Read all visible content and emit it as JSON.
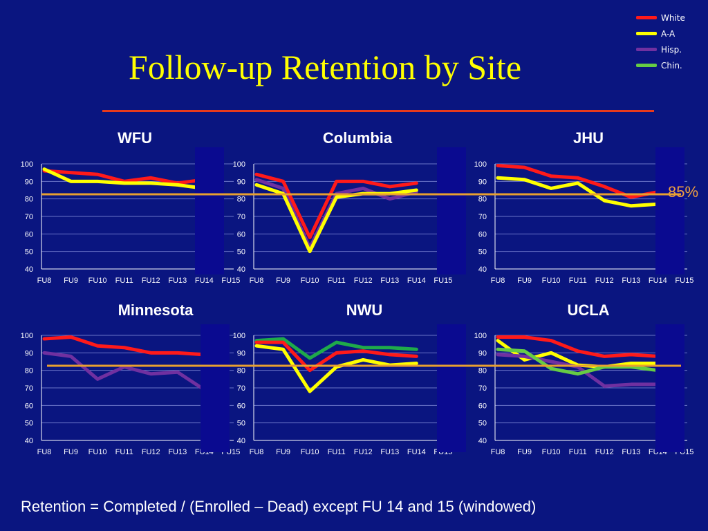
{
  "slide": {
    "title": "Follow-up Retention by Site",
    "threshold_label": "85%",
    "footnote": "Retention = Completed / (Enrolled – Dead) except FU 14 and 15 (windowed)"
  },
  "legend": [
    {
      "label": "White",
      "color": "#ff1a1a"
    },
    {
      "label": "A-A",
      "color": "#ffff00"
    },
    {
      "label": "Hisp.",
      "color": "#7030a0"
    },
    {
      "label": "Chin.",
      "color": "#66cc44"
    }
  ],
  "colors": {
    "background": "#0a1580",
    "white_series": "#ff1a1a",
    "aa_series": "#ffff00",
    "hisp_series": "#7030a0",
    "chin_series": "#66cc44",
    "nwu_chin_series": "#1faa4a",
    "threshold_line": "#e8a030",
    "mask": "#0a0a90"
  },
  "chart_data": [
    {
      "type": "line",
      "title": "WFU",
      "categories": [
        "FU8",
        "FU9",
        "FU10",
        "FU11",
        "FU12",
        "FU13",
        "FU14",
        "FU15"
      ],
      "ylim": [
        40,
        100
      ],
      "yticks": [
        40,
        50,
        60,
        70,
        80,
        90,
        100
      ],
      "series": [
        {
          "name": "White",
          "values": [
            96,
            95,
            94,
            90,
            92,
            89,
            91,
            null
          ]
        },
        {
          "name": "A-A",
          "values": [
            97,
            90,
            90,
            89,
            89,
            88,
            86,
            null
          ]
        }
      ]
    },
    {
      "type": "line",
      "title": "Columbia",
      "categories": [
        "FU8",
        "FU9",
        "FU10",
        "FU11",
        "FU12",
        "FU13",
        "FU14",
        "FU15"
      ],
      "ylim": [
        40,
        100
      ],
      "yticks": [
        40,
        50,
        60,
        70,
        80,
        90,
        100
      ],
      "series": [
        {
          "name": "White",
          "values": [
            94,
            90,
            58,
            90,
            90,
            87,
            89,
            null
          ]
        },
        {
          "name": "Hisp.",
          "values": [
            91,
            86,
            52,
            83,
            86,
            80,
            84,
            null
          ]
        },
        {
          "name": "A-A",
          "values": [
            88,
            83,
            50,
            81,
            83,
            83,
            85,
            null
          ]
        }
      ]
    },
    {
      "type": "line",
      "title": "JHU",
      "categories": [
        "FU8",
        "FU9",
        "FU10",
        "FU11",
        "FU12",
        "FU13",
        "FU14",
        "FU15"
      ],
      "ylim": [
        40,
        100
      ],
      "yticks": [
        40,
        50,
        60,
        70,
        80,
        90,
        100
      ],
      "series": [
        {
          "name": "White",
          "values": [
            99,
            98,
            93,
            92,
            87,
            81,
            84,
            null
          ]
        },
        {
          "name": "A-A",
          "values": [
            92,
            91,
            86,
            89,
            79,
            76,
            77,
            null
          ]
        }
      ]
    },
    {
      "type": "line",
      "title": "Minnesota",
      "categories": [
        "FU8",
        "FU9",
        "FU10",
        "FU11",
        "FU12",
        "FU13",
        "FU14",
        "FU15"
      ],
      "ylim": [
        40,
        100
      ],
      "yticks": [
        40,
        50,
        60,
        70,
        80,
        90,
        100
      ],
      "series": [
        {
          "name": "White",
          "values": [
            98,
            99,
            94,
            93,
            90,
            90,
            89,
            null
          ]
        },
        {
          "name": "Hisp.",
          "values": [
            90,
            88,
            75,
            82,
            78,
            79,
            69,
            null
          ]
        }
      ]
    },
    {
      "type": "line",
      "title": "NWU",
      "categories": [
        "FU8",
        "FU9",
        "FU10",
        "FU11",
        "FU12",
        "FU13",
        "FU14",
        "FU15"
      ],
      "ylim": [
        40,
        100
      ],
      "yticks": [
        40,
        50,
        60,
        70,
        80,
        90,
        100
      ],
      "series": [
        {
          "name": "Chin.",
          "values": [
            97,
            98,
            87,
            96,
            93,
            93,
            92,
            null
          ]
        },
        {
          "name": "White",
          "values": [
            96,
            96,
            80,
            90,
            91,
            89,
            88,
            null
          ]
        },
        {
          "name": "A-A",
          "values": [
            94,
            92,
            68,
            82,
            86,
            83,
            84,
            null
          ]
        }
      ]
    },
    {
      "type": "line",
      "title": "UCLA",
      "categories": [
        "FU8",
        "FU9",
        "FU10",
        "FU11",
        "FU12",
        "FU13",
        "FU14",
        "FU15"
      ],
      "ylim": [
        40,
        100
      ],
      "yticks": [
        40,
        50,
        60,
        70,
        80,
        90,
        100
      ],
      "series": [
        {
          "name": "White",
          "values": [
            99,
            99,
            97,
            91,
            88,
            89,
            88,
            null
          ]
        },
        {
          "name": "A-A",
          "values": [
            97,
            86,
            90,
            83,
            82,
            84,
            84,
            null
          ]
        },
        {
          "name": "Hisp.",
          "values": [
            89,
            88,
            85,
            82,
            71,
            72,
            72,
            null
          ]
        },
        {
          "name": "Chin.",
          "values": [
            92,
            91,
            81,
            78,
            82,
            82,
            80,
            null
          ]
        }
      ]
    }
  ]
}
